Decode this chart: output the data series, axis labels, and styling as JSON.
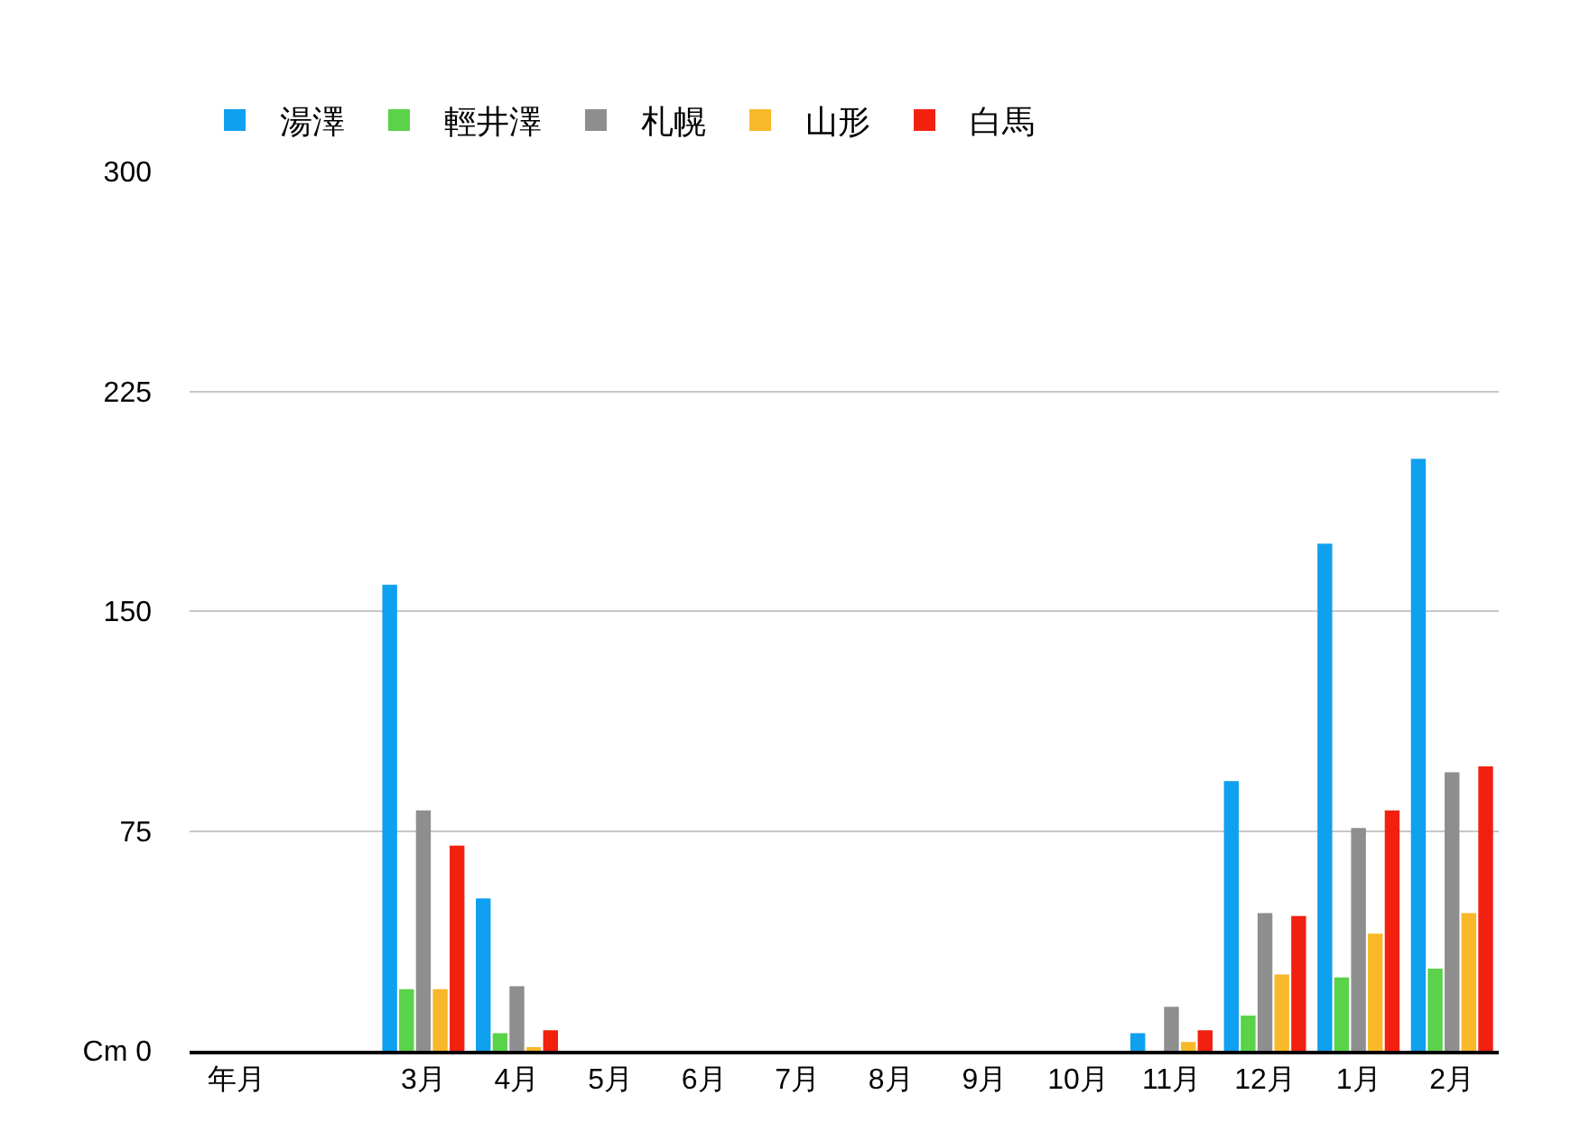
{
  "chart_data": {
    "type": "bar",
    "categories": [
      "年月",
      null,
      "3月",
      "4月",
      "5月",
      "6月",
      "7月",
      "8月",
      "9月",
      "10月",
      "11月",
      "12月",
      "1月",
      "2月"
    ],
    "series": [
      {
        "name": "湯澤",
        "color": "#0fa0f0",
        "values": [
          null,
          null,
          159,
          52,
          0,
          0,
          0,
          0,
          0,
          0,
          6,
          92,
          173,
          202
        ]
      },
      {
        "name": "輕井澤",
        "color": "#5ad24a",
        "values": [
          null,
          null,
          21,
          6,
          0,
          0,
          0,
          0,
          0,
          0,
          0,
          12,
          25,
          28
        ]
      },
      {
        "name": "札幌",
        "color": "#8e8e8e",
        "values": [
          null,
          null,
          82,
          22,
          0,
          0,
          0,
          0,
          0,
          0,
          15,
          47,
          76,
          95
        ]
      },
      {
        "name": "山形",
        "color": "#f8b829",
        "values": [
          null,
          null,
          21,
          1,
          0,
          0,
          0,
          0,
          0,
          0,
          3,
          26,
          40,
          47
        ]
      },
      {
        "name": "白馬",
        "color": "#f2210f",
        "values": [
          null,
          null,
          70,
          7,
          0,
          0,
          0,
          0,
          0,
          0,
          7,
          46,
          82,
          97
        ]
      }
    ],
    "ylim": [
      0,
      300
    ],
    "yticks": [
      {
        "value": 0,
        "label": "Cm 0"
      },
      75,
      150,
      225,
      300
    ],
    "grid": "y",
    "legend": "top left"
  }
}
